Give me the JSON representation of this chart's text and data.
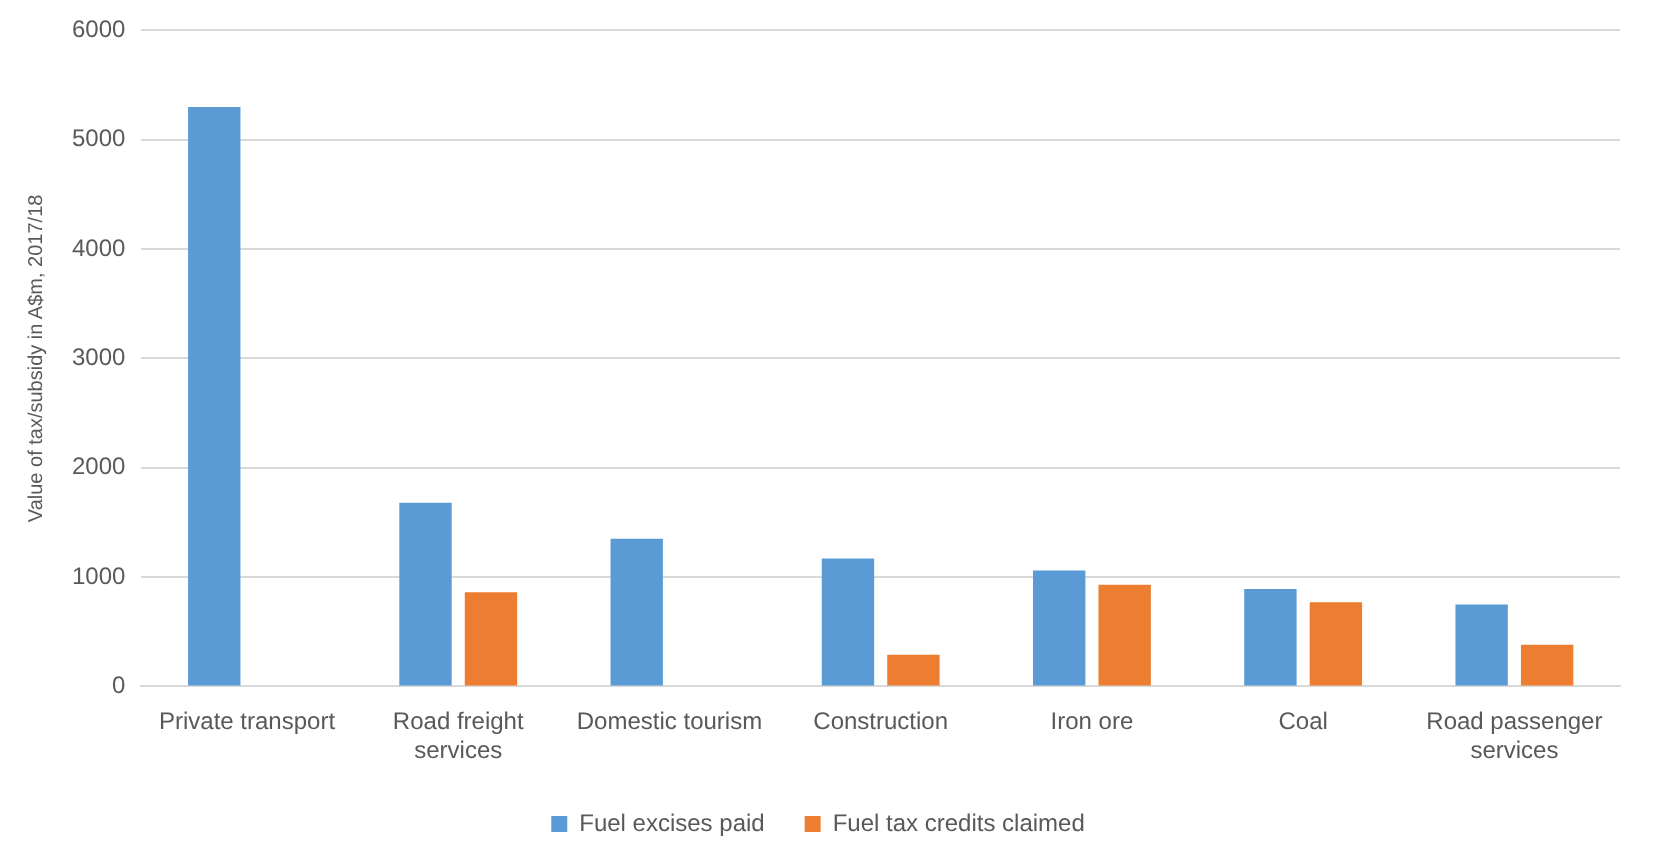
{
  "chart_data": {
    "type": "bar",
    "ylabel": "Value of tax/subsidy in A$m, 2017/18",
    "categories": [
      "Private transport",
      "Road freight services",
      "Domestic tourism",
      "Construction",
      "Iron ore",
      "Coal",
      "Road passenger services"
    ],
    "series": [
      {
        "name": "Fuel excises paid",
        "color": "#5b9bd5",
        "values": [
          5300,
          1680,
          1350,
          1170,
          1060,
          890,
          750
        ]
      },
      {
        "name": "Fuel tax credits claimed",
        "color": "#ed7d31",
        "values": [
          null,
          860,
          null,
          290,
          930,
          770,
          380
        ]
      }
    ],
    "ylim": [
      0,
      6000
    ],
    "yticks": [
      0,
      1000,
      2000,
      3000,
      4000,
      5000,
      6000
    ],
    "grid": "y",
    "legend": "bottom"
  }
}
